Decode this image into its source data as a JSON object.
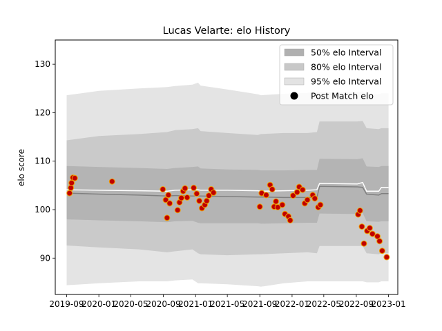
{
  "chart_data": {
    "type": "line",
    "title": "Lucas Velarte: elo History",
    "ylabel": "elo score",
    "xlabel": "",
    "ylim": [
      82.5,
      135
    ],
    "xlim": [
      "2019-07-20",
      "2023-02-05"
    ],
    "yticks": [
      90,
      100,
      110,
      120,
      130
    ],
    "xticks": [
      {
        "date": "2019-09-01",
        "label": "2019-09"
      },
      {
        "date": "2020-01-01",
        "label": "2020-01"
      },
      {
        "date": "2020-05-01",
        "label": "2020-05"
      },
      {
        "date": "2020-09-01",
        "label": "2020-09"
      },
      {
        "date": "2021-01-01",
        "label": "2021-01"
      },
      {
        "date": "2021-05-01",
        "label": "2021-05"
      },
      {
        "date": "2021-09-01",
        "label": "2021-09"
      },
      {
        "date": "2022-01-01",
        "label": "2022-01"
      },
      {
        "date": "2022-05-01",
        "label": "2022-05"
      },
      {
        "date": "2022-09-01",
        "label": "2022-09"
      },
      {
        "date": "2023-01-01",
        "label": "2023-01"
      }
    ],
    "legend_position": "top-right",
    "legend": [
      {
        "label": "50% elo Interval",
        "color": "#b0b0b0",
        "kind": "patch"
      },
      {
        "label": "80% elo Interval",
        "color": "#c8c8c8",
        "kind": "patch"
      },
      {
        "label": "95% elo Interval",
        "color": "#e3e3e3",
        "kind": "patch"
      },
      {
        "label": "Post Match elo",
        "color": "#000000",
        "kind": "marker"
      }
    ],
    "colors": {
      "band50": "#b4b4b4",
      "band80": "#cacaca",
      "band95": "#e4e4e4",
      "mean_line": "#808080",
      "white_line": "#ffffff",
      "point_fill": "#c00000",
      "point_edge": "#f0a000"
    },
    "bands": {
      "x": [
        "2019-09-01",
        "2020-01-01",
        "2020-06-01",
        "2020-09-15",
        "2020-10-15",
        "2020-12-20",
        "2021-01-10",
        "2021-01-20",
        "2021-05-01",
        "2021-08-25",
        "2021-09-05",
        "2021-12-01",
        "2022-03-01",
        "2022-04-05",
        "2022-04-15",
        "2022-09-05",
        "2022-09-25",
        "2022-10-10",
        "2022-11-25",
        "2022-12-05",
        "2023-01-01"
      ],
      "mean": [
        103.4,
        103.2,
        103,
        102.8,
        102.9,
        102.8,
        102.8,
        102.8,
        102.7,
        102.6,
        102.6,
        102.5,
        102.5,
        102.5,
        104.8,
        104.7,
        104.6,
        103.2,
        103,
        103.3,
        103.3
      ],
      "q50_lo": [
        98,
        97.8,
        97.6,
        97.4,
        97.6,
        97.7,
        97.3,
        97.2,
        97.2,
        97.2,
        97.1,
        97.2,
        97.3,
        97.3,
        99.2,
        99.1,
        99.3,
        97.6,
        97.5,
        97.6,
        97.6
      ],
      "q50_hi": [
        109,
        108.8,
        108.6,
        108.4,
        108.6,
        108.8,
        108.9,
        108.5,
        108.3,
        108.2,
        108.1,
        108.1,
        108.2,
        108.2,
        110.5,
        110.4,
        110.6,
        108.9,
        108.8,
        109,
        109
      ],
      "q80_lo": [
        92.6,
        92.2,
        91.8,
        91.2,
        91.4,
        91.8,
        91,
        90.8,
        90.6,
        90.8,
        90.8,
        91,
        91.2,
        91,
        92.5,
        92.5,
        92.5,
        91,
        90.8,
        91,
        91
      ],
      "q80_hi": [
        114.3,
        115.2,
        115.6,
        116,
        116.4,
        116.6,
        116.8,
        116.2,
        115.8,
        115.4,
        115.6,
        115.8,
        115.8,
        116,
        118.2,
        118.2,
        118.3,
        116.8,
        116.6,
        116.8,
        116.8
      ],
      "q95_lo": [
        84.4,
        84.8,
        85.2,
        85.2,
        85.4,
        85.6,
        84.8,
        84.8,
        84.6,
        84.2,
        84.1,
        84.8,
        85.2,
        85.2,
        85.2,
        85.2,
        85.2,
        85,
        85,
        85.2,
        85.2
      ],
      "q95_hi": [
        123.6,
        124.5,
        125,
        125.3,
        125.5,
        125.8,
        126.2,
        125.6,
        124.8,
        123.8,
        123.6,
        123.9,
        124.1,
        124.3,
        124.3,
        124.2,
        124.4,
        123.8,
        123.8,
        124,
        124
      ],
      "white_line": [
        104.1,
        104,
        103.9,
        103.8,
        104,
        104.1,
        104.1,
        104,
        104,
        103.9,
        103.8,
        103.9,
        104,
        104.1,
        105.4,
        105.3,
        105.6,
        103.8,
        103.8,
        104.6,
        104.6
      ]
    },
    "points": [
      {
        "x": "2019-09-12",
        "y": 103.4
      },
      {
        "x": "2019-09-17",
        "y": 104.5
      },
      {
        "x": "2019-09-20",
        "y": 105.5
      },
      {
        "x": "2019-09-25",
        "y": 106.6
      },
      {
        "x": "2019-10-02",
        "y": 106.5
      },
      {
        "x": "2020-02-20",
        "y": 105.8
      },
      {
        "x": "2020-08-30",
        "y": 104.2
      },
      {
        "x": "2020-09-10",
        "y": 102
      },
      {
        "x": "2020-09-15",
        "y": 98.3
      },
      {
        "x": "2020-09-20",
        "y": 103
      },
      {
        "x": "2020-09-25",
        "y": 101.3
      },
      {
        "x": "2020-10-25",
        "y": 99.9
      },
      {
        "x": "2020-11-01",
        "y": 101.5
      },
      {
        "x": "2020-11-08",
        "y": 102.4
      },
      {
        "x": "2020-11-15",
        "y": 103.8
      },
      {
        "x": "2020-11-22",
        "y": 104.4
      },
      {
        "x": "2020-11-30",
        "y": 102.5
      },
      {
        "x": "2020-12-25",
        "y": 104.5
      },
      {
        "x": "2021-01-05",
        "y": 103.3
      },
      {
        "x": "2021-01-15",
        "y": 101.8
      },
      {
        "x": "2021-01-25",
        "y": 100.3
      },
      {
        "x": "2021-02-05",
        "y": 101
      },
      {
        "x": "2021-02-12",
        "y": 101.8
      },
      {
        "x": "2021-02-20",
        "y": 102.9
      },
      {
        "x": "2021-03-01",
        "y": 104.2
      },
      {
        "x": "2021-03-10",
        "y": 103.5
      },
      {
        "x": "2021-09-01",
        "y": 100.6
      },
      {
        "x": "2021-09-08",
        "y": 103.4
      },
      {
        "x": "2021-09-25",
        "y": 103
      },
      {
        "x": "2021-10-10",
        "y": 105.1
      },
      {
        "x": "2021-10-18",
        "y": 104.2
      },
      {
        "x": "2021-10-25",
        "y": 100.6
      },
      {
        "x": "2021-11-01",
        "y": 101.7
      },
      {
        "x": "2021-11-08",
        "y": 100.5
      },
      {
        "x": "2021-11-25",
        "y": 101
      },
      {
        "x": "2021-12-05",
        "y": 99.1
      },
      {
        "x": "2021-12-18",
        "y": 98.6
      },
      {
        "x": "2021-12-25",
        "y": 97.8
      },
      {
        "x": "2022-01-05",
        "y": 102.9
      },
      {
        "x": "2022-01-20",
        "y": 103.6
      },
      {
        "x": "2022-01-28",
        "y": 104.7
      },
      {
        "x": "2022-02-10",
        "y": 104.1
      },
      {
        "x": "2022-02-18",
        "y": 101.3
      },
      {
        "x": "2022-02-28",
        "y": 102
      },
      {
        "x": "2022-03-20",
        "y": 103
      },
      {
        "x": "2022-03-28",
        "y": 102.3
      },
      {
        "x": "2022-04-10",
        "y": 100.5
      },
      {
        "x": "2022-04-18",
        "y": 101
      },
      {
        "x": "2022-09-08",
        "y": 99
      },
      {
        "x": "2022-09-15",
        "y": 99.8
      },
      {
        "x": "2022-09-22",
        "y": 96.5
      },
      {
        "x": "2022-09-30",
        "y": 93
      },
      {
        "x": "2022-10-12",
        "y": 95.6
      },
      {
        "x": "2022-10-22",
        "y": 96.2
      },
      {
        "x": "2022-11-01",
        "y": 95
      },
      {
        "x": "2022-11-20",
        "y": 94.5
      },
      {
        "x": "2022-11-28",
        "y": 93.5
      },
      {
        "x": "2022-12-08",
        "y": 91.5
      },
      {
        "x": "2022-12-25",
        "y": 90.2
      }
    ]
  }
}
